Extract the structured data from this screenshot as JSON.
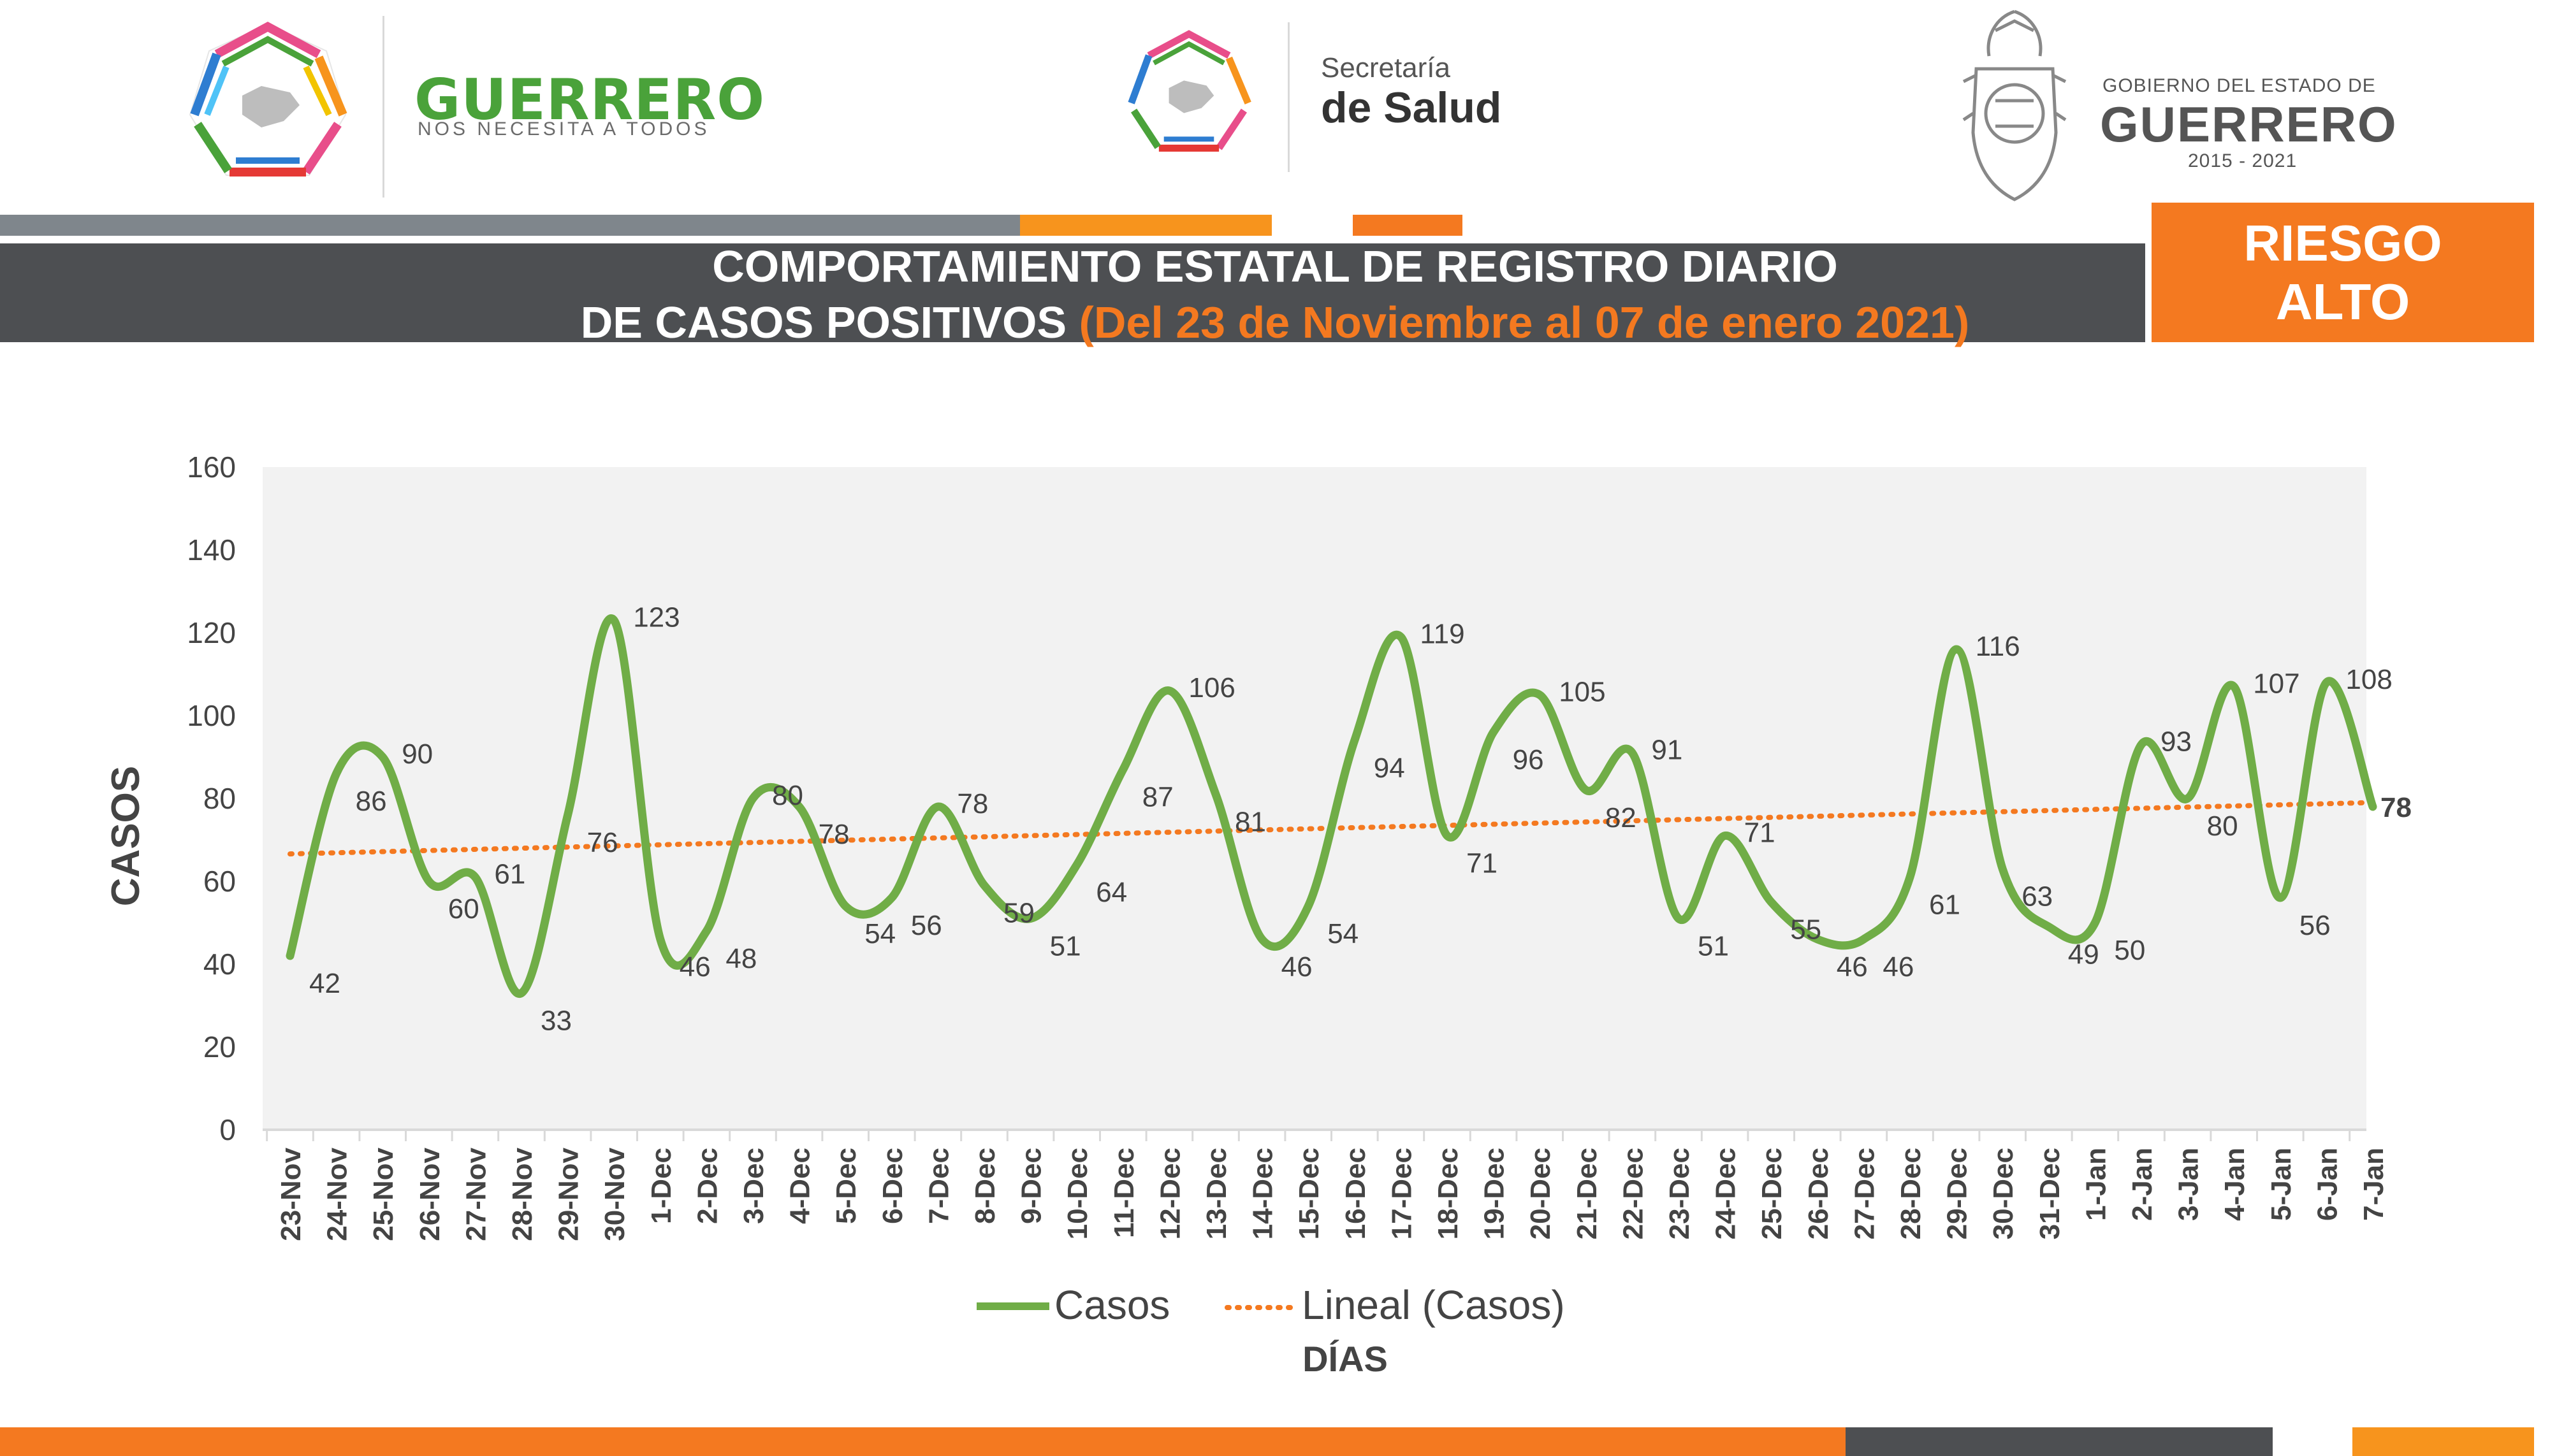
{
  "header": {
    "logo1_title": "GUERRERO",
    "logo1_subtitle": "NOS NECESITA A TODOS",
    "logo2_line1": "Secretaría",
    "logo2_line2": "de Salud",
    "gov_line1": "GOBIERNO DEL ESTADO DE",
    "gov_line2": "GUERRERO",
    "gov_line3": "2015 - 2021"
  },
  "title": {
    "line1": "COMPORTAMIENTO ESTATAL DE REGISTRO DIARIO",
    "line2": "DE CASOS POSITIVOS ",
    "range": "(Del 23 de Noviembre al 07 de enero 2021)"
  },
  "risk": {
    "line1": "RIESGO",
    "line2": "ALTO"
  },
  "colors": {
    "orange": "#f47920",
    "green": "#70ad47",
    "gray": "#4d4f52",
    "plot_bg": "#f2f2f2"
  },
  "chart_data": {
    "type": "line",
    "xlabel": "DÍAS",
    "ylabel": "CASOS",
    "ylim": [
      0,
      160
    ],
    "yticks": [
      0,
      20,
      40,
      60,
      80,
      100,
      120,
      140,
      160
    ],
    "categories": [
      "23-Nov",
      "24-Nov",
      "25-Nov",
      "26-Nov",
      "27-Nov",
      "28-Nov",
      "29-Nov",
      "30-Nov",
      "1-Dec",
      "2-Dec",
      "3-Dec",
      "4-Dec",
      "5-Dec",
      "6-Dec",
      "7-Dec",
      "8-Dec",
      "9-Dec",
      "10-Dec",
      "11-Dec",
      "12-Dec",
      "13-Dec",
      "14-Dec",
      "15-Dec",
      "16-Dec",
      "17-Dec",
      "18-Dec",
      "19-Dec",
      "20-Dec",
      "21-Dec",
      "22-Dec",
      "23-Dec",
      "24-Dec",
      "25-Dec",
      "26-Dec",
      "27-Dec",
      "28-Dec",
      "29-Dec",
      "30-Dec",
      "31-Dec",
      "1-Jan",
      "2-Jan",
      "3-Jan",
      "4-Jan",
      "5-Jan",
      "6-Jan",
      "7-Jan"
    ],
    "series": [
      {
        "name": "Casos",
        "color": "#70ad47",
        "values": [
          42,
          86,
          90,
          60,
          61,
          33,
          76,
          123,
          46,
          48,
          80,
          78,
          54,
          56,
          78,
          59,
          51,
          64,
          87,
          106,
          81,
          46,
          54,
          94,
          119,
          71,
          96,
          105,
          82,
          91,
          51,
          71,
          55,
          46,
          46,
          61,
          116,
          63,
          49,
          50,
          93,
          80,
          107,
          56,
          108,
          78
        ]
      },
      {
        "name": "Lineal (Casos)",
        "color": "#f47920",
        "trendline": true,
        "start": 66.6,
        "end": 79.0
      }
    ],
    "legend": "bottom"
  }
}
